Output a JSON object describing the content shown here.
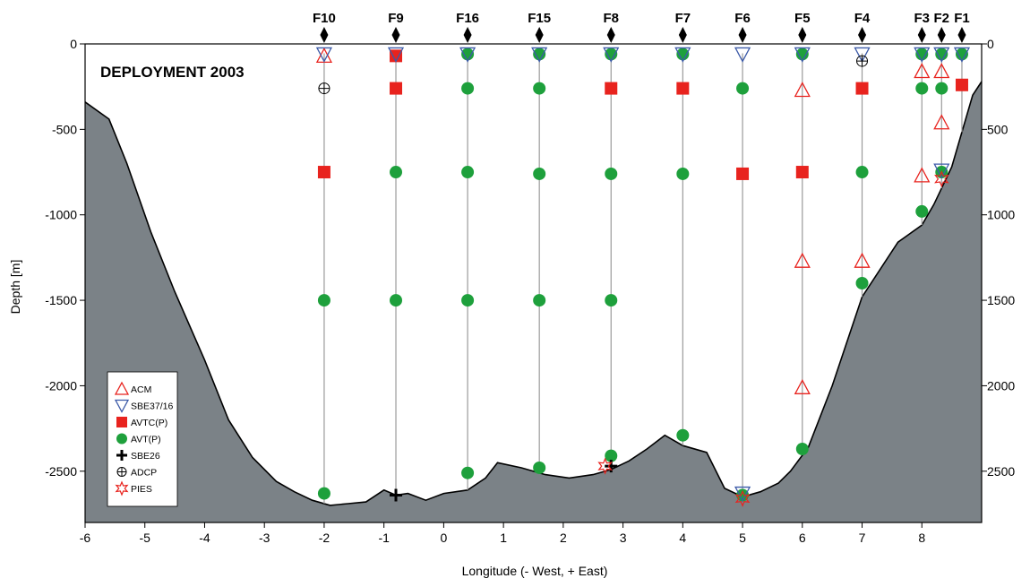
{
  "chart_data": {
    "type": "scatter",
    "title": "DEPLOYMENT 2003",
    "xlabel": "Longitude (- West, + East)",
    "ylabel": "Depth [m]",
    "xlim": [
      -6,
      9
    ],
    "ylim": [
      -2800,
      0
    ],
    "x_ticks": [
      -6,
      -5,
      -4,
      -3,
      -2,
      -1,
      0,
      1,
      2,
      3,
      4,
      5,
      6,
      7,
      8
    ],
    "y_ticks_left": [
      0,
      -500,
      -1000,
      -1500,
      -2000,
      -2500
    ],
    "y_ticks_right": [
      0,
      500,
      1000,
      1500,
      2000,
      2500
    ],
    "grid": false,
    "legend_position": "bottom-left",
    "colors": {
      "red": "#e8231e",
      "blue": "#3c5aa8",
      "green": "#1ea03c",
      "seafloor": "#7b8287",
      "black": "#000000"
    },
    "moorings": [
      {
        "name": "F10",
        "x": -2
      },
      {
        "name": "F9",
        "x": -0.8
      },
      {
        "name": "F16",
        "x": 0.4
      },
      {
        "name": "F15",
        "x": 1.6
      },
      {
        "name": "F8",
        "x": 2.8
      },
      {
        "name": "F7",
        "x": 4
      },
      {
        "name": "F6",
        "x": 5
      },
      {
        "name": "F5",
        "x": 6
      },
      {
        "name": "F4",
        "x": 7
      },
      {
        "name": "F3",
        "x": 8
      },
      {
        "name": "F2",
        "x": 8.33
      },
      {
        "name": "F1",
        "x": 8.67
      }
    ],
    "bathymetry": [
      [
        -6,
        -340
      ],
      [
        -5.6,
        -440
      ],
      [
        -5.3,
        -700
      ],
      [
        -4.9,
        -1100
      ],
      [
        -4.5,
        -1450
      ],
      [
        -4.0,
        -1850
      ],
      [
        -3.6,
        -2200
      ],
      [
        -3.2,
        -2420
      ],
      [
        -2.8,
        -2560
      ],
      [
        -2.5,
        -2620
      ],
      [
        -2.2,
        -2670
      ],
      [
        -1.9,
        -2700
      ],
      [
        -1.6,
        -2690
      ],
      [
        -1.3,
        -2680
      ],
      [
        -1.0,
        -2610
      ],
      [
        -0.8,
        -2640
      ],
      [
        -0.6,
        -2630
      ],
      [
        -0.3,
        -2670
      ],
      [
        0.0,
        -2630
      ],
      [
        0.4,
        -2610
      ],
      [
        0.7,
        -2540
      ],
      [
        0.9,
        -2450
      ],
      [
        1.3,
        -2480
      ],
      [
        1.7,
        -2520
      ],
      [
        2.1,
        -2540
      ],
      [
        2.5,
        -2520
      ],
      [
        2.8,
        -2490
      ],
      [
        3.1,
        -2440
      ],
      [
        3.4,
        -2370
      ],
      [
        3.7,
        -2290
      ],
      [
        4.0,
        -2350
      ],
      [
        4.4,
        -2390
      ],
      [
        4.7,
        -2600
      ],
      [
        5.0,
        -2650
      ],
      [
        5.3,
        -2620
      ],
      [
        5.6,
        -2570
      ],
      [
        5.8,
        -2500
      ],
      [
        6.1,
        -2360
      ],
      [
        6.5,
        -2000
      ],
      [
        7.0,
        -1480
      ],
      [
        7.3,
        -1320
      ],
      [
        7.6,
        -1160
      ],
      [
        8.0,
        -1060
      ],
      [
        8.2,
        -940
      ],
      [
        8.5,
        -720
      ],
      [
        8.7,
        -480
      ],
      [
        8.85,
        -300
      ],
      [
        9.0,
        -220
      ]
    ],
    "series": [
      {
        "name": "ACM",
        "symbol": "triangle-up",
        "color": "#e8231e",
        "filled": false,
        "x": [
          -2,
          6,
          6,
          6,
          7,
          8,
          8,
          8.33,
          8.33
        ],
        "y": [
          -70,
          -270,
          -1270,
          -2010,
          -1270,
          -160,
          -770,
          -160,
          -460
        ]
      },
      {
        "name": "SBE37/16",
        "symbol": "triangle-down",
        "color": "#3c5aa8",
        "filled": false,
        "x": [
          -2,
          -0.8,
          0.4,
          1.6,
          2.8,
          4,
          5,
          6,
          7,
          8,
          8.33,
          8.67,
          5,
          8.33
        ],
        "y": [
          -60,
          -60,
          -60,
          -60,
          -60,
          -60,
          -60,
          -60,
          -60,
          -60,
          -60,
          -60,
          -2630,
          -740
        ]
      },
      {
        "name": "AVTC(P)",
        "symbol": "square",
        "color": "#e8231e",
        "filled": true,
        "x": [
          -2,
          -0.8,
          -0.8,
          2.8,
          4,
          5,
          6,
          7,
          8.67
        ],
        "y": [
          -750,
          -70,
          -260,
          -260,
          -260,
          -760,
          -750,
          -260,
          -240
        ]
      },
      {
        "name": "AVT(P)",
        "symbol": "circle",
        "color": "#1ea03c",
        "filled": true,
        "x": [
          -2,
          -2,
          -0.8,
          -0.8,
          0.4,
          0.4,
          0.4,
          0.4,
          0.4,
          1.6,
          1.6,
          1.6,
          1.6,
          1.6,
          2.8,
          2.8,
          2.8,
          2.8,
          4,
          4,
          4,
          5,
          5,
          6,
          6,
          7,
          7,
          8,
          8,
          8,
          8.33,
          8.33,
          8.33,
          8.67
        ],
        "y": [
          -1500,
          -2630,
          -750,
          -1500,
          -60,
          -260,
          -750,
          -1500,
          -2510,
          -60,
          -260,
          -760,
          -1500,
          -2480,
          -60,
          -760,
          -1500,
          -2410,
          -60,
          -760,
          -2290,
          -260,
          -2640,
          -60,
          -2370,
          -750,
          -1400,
          -60,
          -260,
          -980,
          -60,
          -260,
          -750,
          -60
        ]
      },
      {
        "name": "SBE26",
        "symbol": "plus",
        "color": "#000000",
        "filled": true,
        "x": [
          -0.8,
          2.8
        ],
        "y": [
          -2640,
          -2470
        ]
      },
      {
        "name": "ADCP",
        "symbol": "circle-plus",
        "color": "#000000",
        "filled": false,
        "x": [
          -2,
          7
        ],
        "y": [
          -260,
          -100
        ]
      },
      {
        "name": "PIES",
        "symbol": "star6",
        "color": "#e8231e",
        "filled": false,
        "x": [
          2.7,
          5,
          8.33
        ],
        "y": [
          -2470,
          -2660,
          -790
        ]
      }
    ]
  }
}
